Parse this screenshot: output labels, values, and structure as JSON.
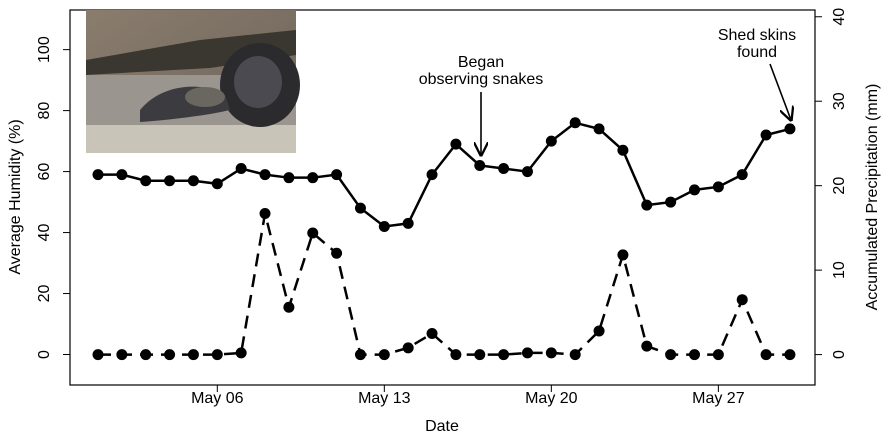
{
  "chart_data": {
    "type": "line",
    "x": [
      "May 01",
      "May 02",
      "May 03",
      "May 04",
      "May 05",
      "May 06",
      "May 07",
      "May 08",
      "May 09",
      "May 10",
      "May 11",
      "May 12",
      "May 13",
      "May 14",
      "May 15",
      "May 16",
      "May 17",
      "May 18",
      "May 19",
      "May 20",
      "May 21",
      "May 22",
      "May 23",
      "May 24",
      "May 25",
      "May 26",
      "May 27",
      "May 28",
      "May 29",
      "May 30"
    ],
    "xticks": [
      "May 06",
      "May 13",
      "May 20",
      "May 27"
    ],
    "xlabel": "Date",
    "ylabel": "Average Humidity (%)",
    "y2label": "Accumulated Precipitation (mm)",
    "ylim": [
      -10,
      113
    ],
    "yticks": [
      0,
      20,
      40,
      60,
      80,
      100
    ],
    "y2lim": [
      -3.6,
      40.8
    ],
    "y2ticks": [
      0,
      10,
      20,
      30,
      40
    ],
    "series": [
      {
        "color": "#000000",
        "dash": false,
        "axis": "y",
        "values": [
          59,
          59,
          57,
          57,
          57,
          56,
          61,
          59,
          58,
          58,
          59,
          48,
          42,
          43,
          59,
          69,
          62,
          61,
          60,
          70,
          76,
          74,
          67,
          49,
          50,
          54,
          55,
          59,
          72,
          74
        ]
      },
      {
        "color": "#000000",
        "dash": true,
        "axis": "y2",
        "values": [
          0,
          0,
          0,
          0,
          0,
          0,
          0.2,
          16.7,
          5.6,
          14.4,
          12,
          0,
          0,
          0.8,
          2.5,
          0,
          0,
          0,
          0.2,
          0.2,
          0,
          2.8,
          11.8,
          1,
          0,
          0,
          0,
          6.5,
          0,
          0
        ]
      }
    ],
    "annotations": [
      {
        "lines": [
          "Began",
          "observing snakes"
        ]
      },
      {
        "lines": [
          "Shed skins",
          "found"
        ]
      }
    ]
  }
}
